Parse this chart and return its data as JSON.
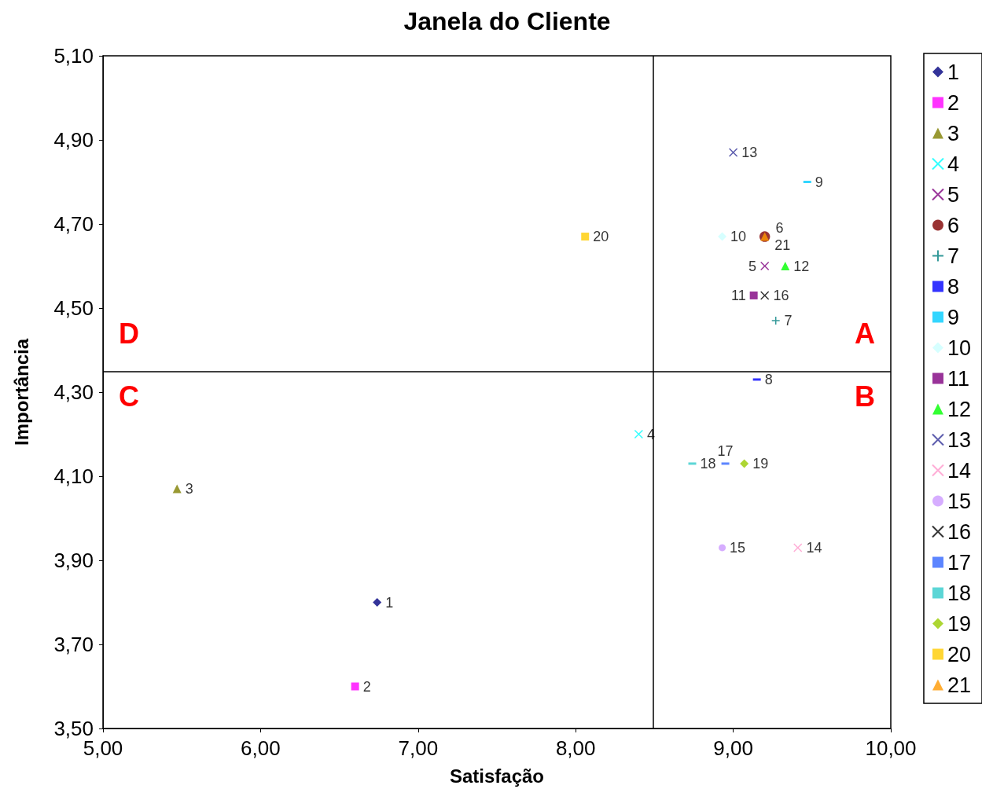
{
  "chart_data": {
    "type": "scatter",
    "title": "Janela do Cliente",
    "xlabel": "Satisfação",
    "ylabel": "Importância",
    "xlim": [
      5,
      10
    ],
    "xticks": [
      {
        "value": 5,
        "label": "5,00"
      },
      {
        "value": 6,
        "label": "6,00"
      },
      {
        "value": 7,
        "label": "7,00"
      },
      {
        "value": 8,
        "label": "8,00"
      },
      {
        "value": 9,
        "label": "9,00"
      },
      {
        "value": 10,
        "label": "10,00"
      }
    ],
    "ylim": [
      3.5,
      5.1
    ],
    "yticks": [
      {
        "value": 3.5,
        "label": "3,50"
      },
      {
        "value": 3.7,
        "label": "3,70"
      },
      {
        "value": 3.9,
        "label": "3,90"
      },
      {
        "value": 4.1,
        "label": "4,10"
      },
      {
        "value": 4.3,
        "label": "4,30"
      },
      {
        "value": 4.5,
        "label": "4,50"
      },
      {
        "value": 4.7,
        "label": "4,70"
      },
      {
        "value": 4.9,
        "label": "4,90"
      },
      {
        "value": 5.1,
        "label": "5,10"
      }
    ],
    "grid": false,
    "legend": "right",
    "ref_lines": [
      {
        "axis": "x",
        "value": 8.49,
        "color": "#000000"
      },
      {
        "axis": "y",
        "value": 4.35,
        "color": "#000000"
      }
    ],
    "annotations": [
      "A",
      "B",
      "C",
      "D"
    ],
    "series": [
      {
        "name": "1",
        "color": "#000080",
        "marker": "diamond",
        "x": [
          6.74
        ],
        "values": [
          3.8
        ]
      },
      {
        "name": "2",
        "color": "#ff00ff",
        "marker": "square",
        "x": [
          6.6
        ],
        "values": [
          3.6
        ]
      },
      {
        "name": "3",
        "color": "#808000",
        "marker": "triangle",
        "x": [
          5.47
        ],
        "values": [
          4.07
        ]
      },
      {
        "name": "4",
        "color": "#00ffff",
        "marker": "cross",
        "x": [
          8.4
        ],
        "values": [
          4.2
        ]
      },
      {
        "name": "5",
        "color": "#800080",
        "marker": "cross",
        "x": [
          9.2
        ],
        "values": [
          4.6
        ]
      },
      {
        "name": "6",
        "color": "#800000",
        "marker": "circle",
        "x": [
          9.2
        ],
        "values": [
          4.67
        ]
      },
      {
        "name": "7",
        "color": "#008080",
        "marker": "plus",
        "x": [
          9.27
        ],
        "values": [
          4.47
        ]
      },
      {
        "name": "8",
        "color": "#0000ff",
        "x": [
          9.15
        ],
        "values": [
          4.33
        ]
      },
      {
        "name": "9",
        "color": "#00ccff",
        "x": [
          9.47
        ],
        "values": [
          4.8
        ]
      },
      {
        "name": "10",
        "color": "#ccffff",
        "marker": "diamond",
        "x": [
          8.93
        ],
        "values": [
          4.67
        ]
      },
      {
        "name": "11",
        "color": "#800080",
        "marker": "square",
        "x": [
          9.13
        ],
        "values": [
          4.53
        ]
      },
      {
        "name": "12",
        "color": "#00ff00",
        "marker": "triangle",
        "x": [
          9.33
        ],
        "values": [
          4.6
        ]
      },
      {
        "name": "13",
        "color": "#333399",
        "marker": "cross",
        "x": [
          9.0
        ],
        "values": [
          4.87
        ]
      },
      {
        "name": "14",
        "color": "#ff99cc",
        "marker": "cross",
        "x": [
          9.41
        ],
        "values": [
          3.93
        ]
      },
      {
        "name": "15",
        "color": "#cc99ff",
        "marker": "circle",
        "x": [
          8.93
        ],
        "values": [
          3.93
        ]
      },
      {
        "name": "16",
        "color": "#000000",
        "marker": "cross",
        "x": [
          9.2
        ],
        "values": [
          4.53
        ]
      },
      {
        "name": "17",
        "color": "#3366ff",
        "x": [
          8.95
        ],
        "values": [
          4.13
        ]
      },
      {
        "name": "18",
        "color": "#33cccc",
        "x": [
          8.74
        ],
        "values": [
          4.13
        ]
      },
      {
        "name": "19",
        "color": "#99cc00",
        "marker": "diamond",
        "x": [
          9.07
        ],
        "values": [
          4.13
        ]
      },
      {
        "name": "20",
        "color": "#ffcc00",
        "marker": "square",
        "x": [
          8.06
        ],
        "values": [
          4.67
        ]
      },
      {
        "name": "21",
        "color": "#ff9900",
        "marker": "triangle",
        "x": [
          9.2
        ],
        "values": [
          4.67
        ]
      }
    ]
  }
}
